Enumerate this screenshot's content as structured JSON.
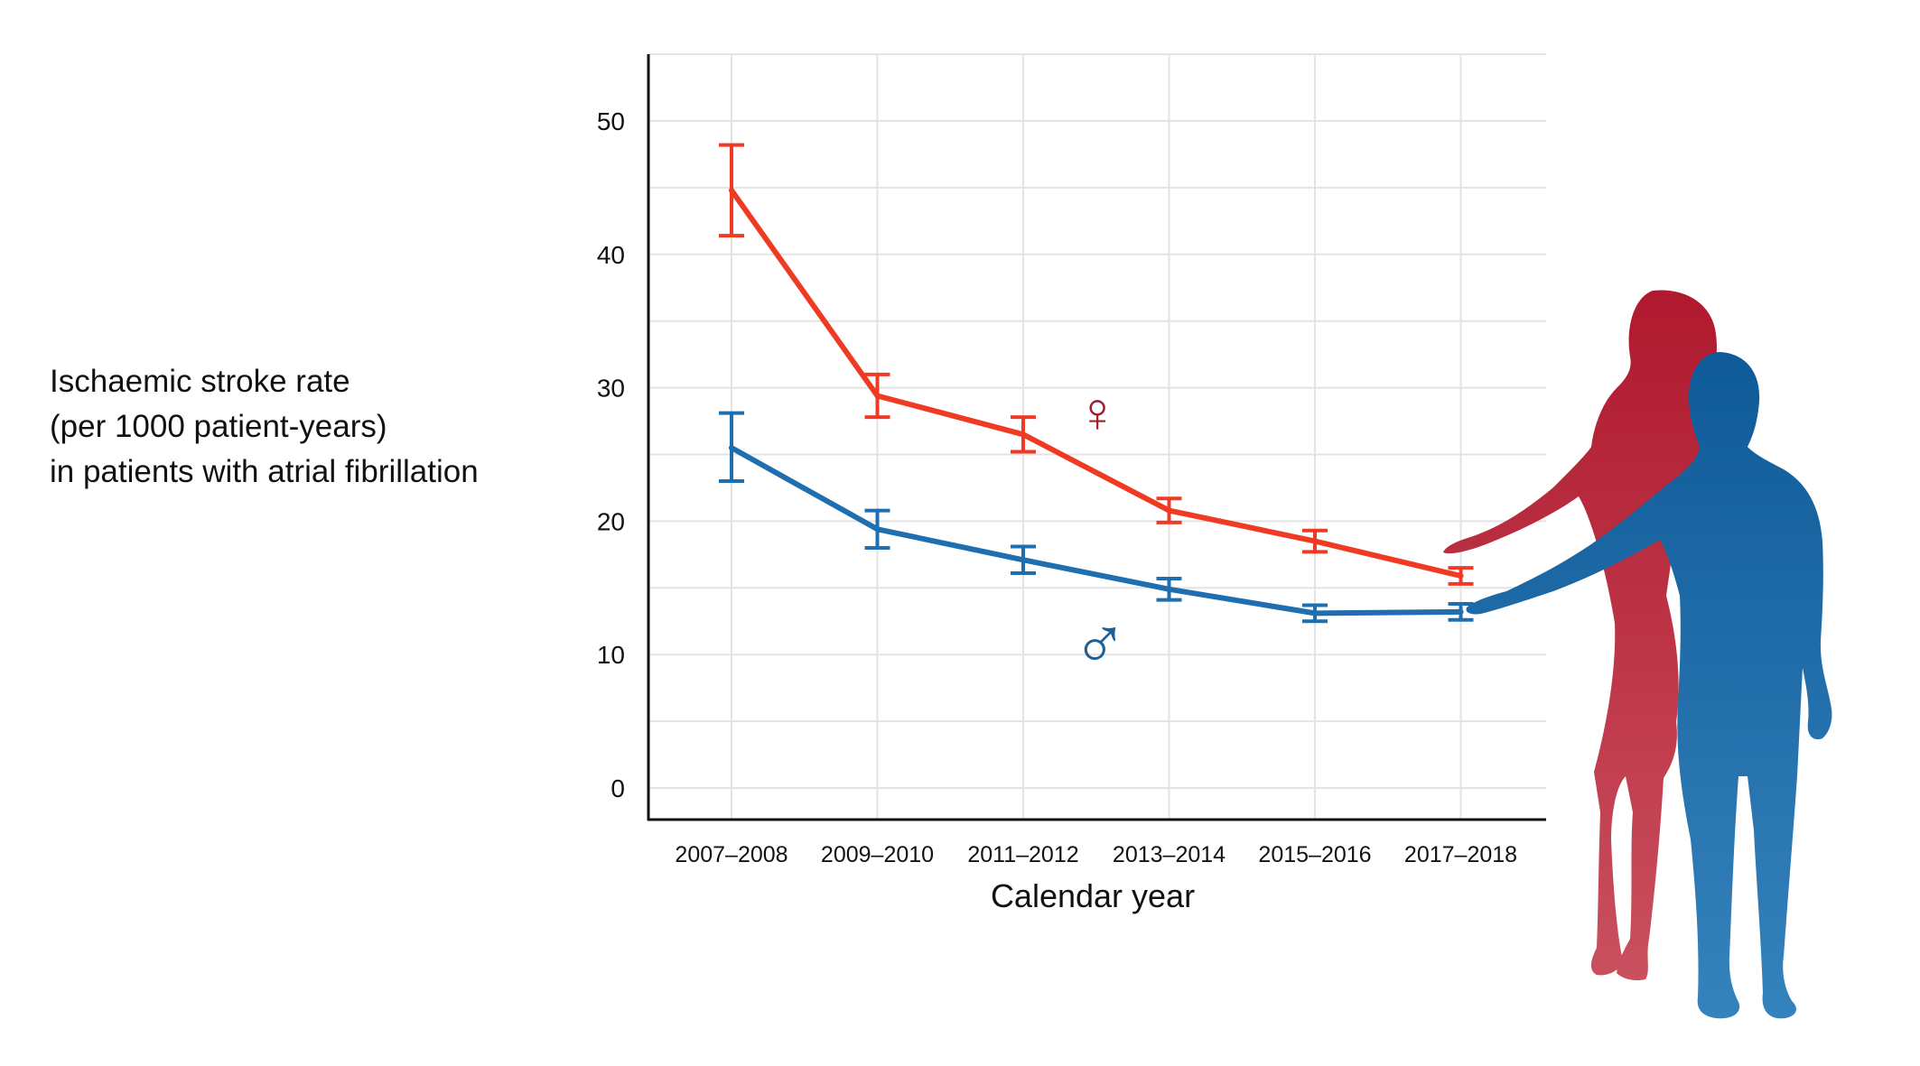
{
  "y_axis_title_lines": [
    "Ischaemic stroke rate",
    "(per 1000 patient-years)",
    "in patients with atrial fibrillation"
  ],
  "chart_data": {
    "type": "line",
    "title": "",
    "xlabel": "Calendar year",
    "ylabel": "Ischaemic stroke rate (per 1000 patient-years) in patients with atrial fibrillation",
    "categories": [
      "2007–2008",
      "2009–2010",
      "2011–2012",
      "2013–2014",
      "2015–2016",
      "2017–2018"
    ],
    "ylim": [
      0,
      55
    ],
    "yticks": [
      0,
      10,
      20,
      30,
      40,
      50
    ],
    "grid": true,
    "series": [
      {
        "symbol": "♀",
        "color": "#ef3b24",
        "symbol_color": "#a31d2e",
        "values": [
          44.8,
          29.4,
          26.5,
          20.8,
          18.5,
          15.9
        ],
        "lower": [
          41.4,
          27.8,
          25.2,
          19.9,
          17.7,
          15.3
        ],
        "upper": [
          48.2,
          31.0,
          27.8,
          21.7,
          19.3,
          16.5
        ]
      },
      {
        "symbol": "♂",
        "color": "#1f6eb0",
        "symbol_color": "#1f5f97",
        "values": [
          25.5,
          19.4,
          17.1,
          14.9,
          13.1,
          13.2
        ],
        "lower": [
          23.0,
          18.0,
          16.1,
          14.1,
          12.5,
          12.6
        ],
        "upper": [
          28.1,
          20.8,
          18.1,
          15.7,
          13.7,
          13.8
        ]
      }
    ]
  },
  "illustration": {
    "icon": "couple-silhouette-icon",
    "woman_color": "#b0192e",
    "man_color": "#0f5a98"
  }
}
